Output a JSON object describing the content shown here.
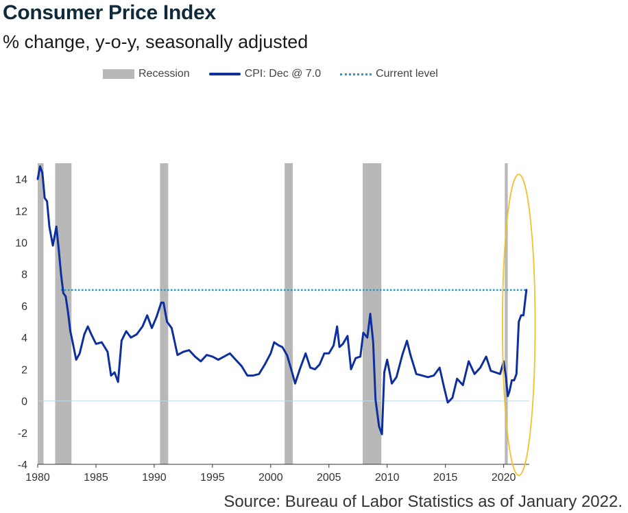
{
  "title": "Consumer Price Index",
  "subtitle": "% change, y-o-y, seasonally adjusted",
  "source": "Source: Bureau of Labor Statistics as of January 2022.",
  "colors": {
    "cpi_line": "#0d2f9e",
    "current_level": "#1a9bd0",
    "recession": "#b8b8b8",
    "highlight_circle": "#f2c12e",
    "zero_line": "#bfd8ea"
  },
  "chart_data": {
    "type": "line",
    "title": "Consumer Price Index",
    "subtitle": "% change, y-o-y, seasonally adjusted",
    "xlabel": "",
    "ylabel": "",
    "xlim": [
      1980,
      2022.2
    ],
    "ylim": [
      -4,
      15
    ],
    "x_ticks": [
      1980,
      1985,
      1990,
      1995,
      2000,
      2005,
      2010,
      2015,
      2020
    ],
    "y_ticks": [
      -4,
      -2,
      0,
      2,
      4,
      6,
      8,
      10,
      12,
      14
    ],
    "grid": false,
    "legend_position": "top",
    "legend": [
      "Recession",
      "CPI: Dec @ 7.0",
      "Current level"
    ],
    "recessions": [
      {
        "start": 1980.0,
        "end": 1980.5
      },
      {
        "start": 1981.5,
        "end": 1982.9
      },
      {
        "start": 1990.5,
        "end": 1991.2
      },
      {
        "start": 2001.2,
        "end": 2001.9
      },
      {
        "start": 2007.9,
        "end": 2009.5
      },
      {
        "start": 2020.1,
        "end": 2020.35
      }
    ],
    "current_level": {
      "value": 7.0,
      "start": 1982.0,
      "end": 2021.95
    },
    "series": [
      {
        "name": "CPI: Dec @ 7.0",
        "x": [
          1980.0,
          1980.2,
          1980.4,
          1980.6,
          1980.8,
          1981.0,
          1981.3,
          1981.6,
          1981.8,
          1982.0,
          1982.2,
          1982.4,
          1982.6,
          1982.8,
          1983.0,
          1983.3,
          1983.6,
          1984.0,
          1984.3,
          1984.6,
          1985.0,
          1985.5,
          1986.0,
          1986.3,
          1986.6,
          1986.9,
          1987.2,
          1987.6,
          1988.0,
          1988.5,
          1989.0,
          1989.4,
          1989.8,
          1990.2,
          1990.6,
          1990.8,
          1991.1,
          1991.5,
          1992.0,
          1992.5,
          1993.0,
          1993.5,
          1994.0,
          1994.5,
          1995.0,
          1995.5,
          1996.0,
          1996.5,
          1997.0,
          1997.5,
          1998.0,
          1998.5,
          1999.0,
          1999.5,
          2000.0,
          2000.3,
          2000.7,
          2001.0,
          2001.4,
          2001.8,
          2002.1,
          2002.5,
          2003.0,
          2003.4,
          2003.8,
          2004.2,
          2004.6,
          2005.0,
          2005.4,
          2005.7,
          2005.9,
          2006.2,
          2006.6,
          2006.9,
          2007.3,
          2007.7,
          2007.95,
          2008.3,
          2008.55,
          2008.8,
          2009.0,
          2009.3,
          2009.55,
          2009.75,
          2010.0,
          2010.4,
          2010.8,
          2011.3,
          2011.7,
          2012.0,
          2012.5,
          2013.0,
          2013.5,
          2014.0,
          2014.5,
          2014.9,
          2015.2,
          2015.6,
          2016.0,
          2016.5,
          2017.0,
          2017.5,
          2018.0,
          2018.5,
          2018.9,
          2019.3,
          2019.7,
          2020.0,
          2020.2,
          2020.35,
          2020.5,
          2020.7,
          2020.9,
          2021.1,
          2021.3,
          2021.5,
          2021.7,
          2021.95
        ],
        "values": [
          14.0,
          14.8,
          14.4,
          12.8,
          12.6,
          11.0,
          9.8,
          11.0,
          9.6,
          8.0,
          6.8,
          6.6,
          5.6,
          4.4,
          3.7,
          2.6,
          3.0,
          4.2,
          4.7,
          4.2,
          3.6,
          3.7,
          3.1,
          1.6,
          1.8,
          1.2,
          3.8,
          4.4,
          4.0,
          4.2,
          4.7,
          5.4,
          4.6,
          5.3,
          6.2,
          6.2,
          5.0,
          4.6,
          2.9,
          3.1,
          3.2,
          2.8,
          2.5,
          2.9,
          2.8,
          2.6,
          2.8,
          3.0,
          2.6,
          2.2,
          1.6,
          1.6,
          1.7,
          2.3,
          3.0,
          3.7,
          3.5,
          3.4,
          2.9,
          1.9,
          1.1,
          2.0,
          3.0,
          2.1,
          2.0,
          2.3,
          3.0,
          3.0,
          3.5,
          4.7,
          3.4,
          3.6,
          4.1,
          2.0,
          2.7,
          2.8,
          4.3,
          4.0,
          5.5,
          3.7,
          0.1,
          -1.6,
          -2.1,
          1.8,
          2.6,
          1.1,
          1.5,
          2.9,
          3.8,
          2.9,
          1.7,
          1.6,
          1.5,
          1.6,
          2.1,
          0.8,
          -0.1,
          0.2,
          1.4,
          1.0,
          2.5,
          1.7,
          2.1,
          2.8,
          1.9,
          1.8,
          1.7,
          2.5,
          1.5,
          0.3,
          0.6,
          1.3,
          1.3,
          1.7,
          5.0,
          5.4,
          5.4,
          7.0
        ]
      }
    ]
  }
}
